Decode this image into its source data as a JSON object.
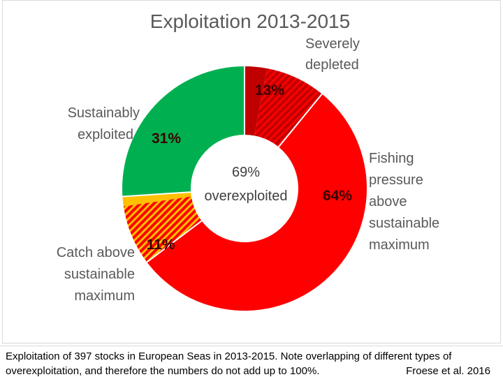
{
  "chart_data": {
    "type": "pie",
    "title": "Exploitation 2013-2015",
    "center_label": [
      "69%",
      "overexploited"
    ],
    "slices": [
      {
        "label_lines": [
          "Severely",
          "depleted"
        ],
        "value": 13,
        "value_label": "13%",
        "color": "#c00000",
        "hatched": true
      },
      {
        "label_lines": [
          "Fishing",
          "pressure",
          "above",
          "sustainable",
          "maximum"
        ],
        "value": 64,
        "value_label": "64%",
        "color": "#ff0000",
        "hatched": false
      },
      {
        "label_lines": [
          "Catch above",
          "sustainable",
          "maximum"
        ],
        "value": 11,
        "value_label": "11%",
        "color": "#ffc000",
        "hatched": true
      },
      {
        "label_lines": [
          "Sustainably",
          "exploited"
        ],
        "value": 31,
        "value_label": "31%",
        "color": "#00b050",
        "hatched": false
      }
    ]
  },
  "caption": {
    "line1": "Exploitation of 397 stocks in European Seas in 2013-2015. Note overlapping of different types of",
    "line2": "overexploitation, and therefore the numbers do not add up to 100%.",
    "source": "Froese et al. 2016"
  }
}
